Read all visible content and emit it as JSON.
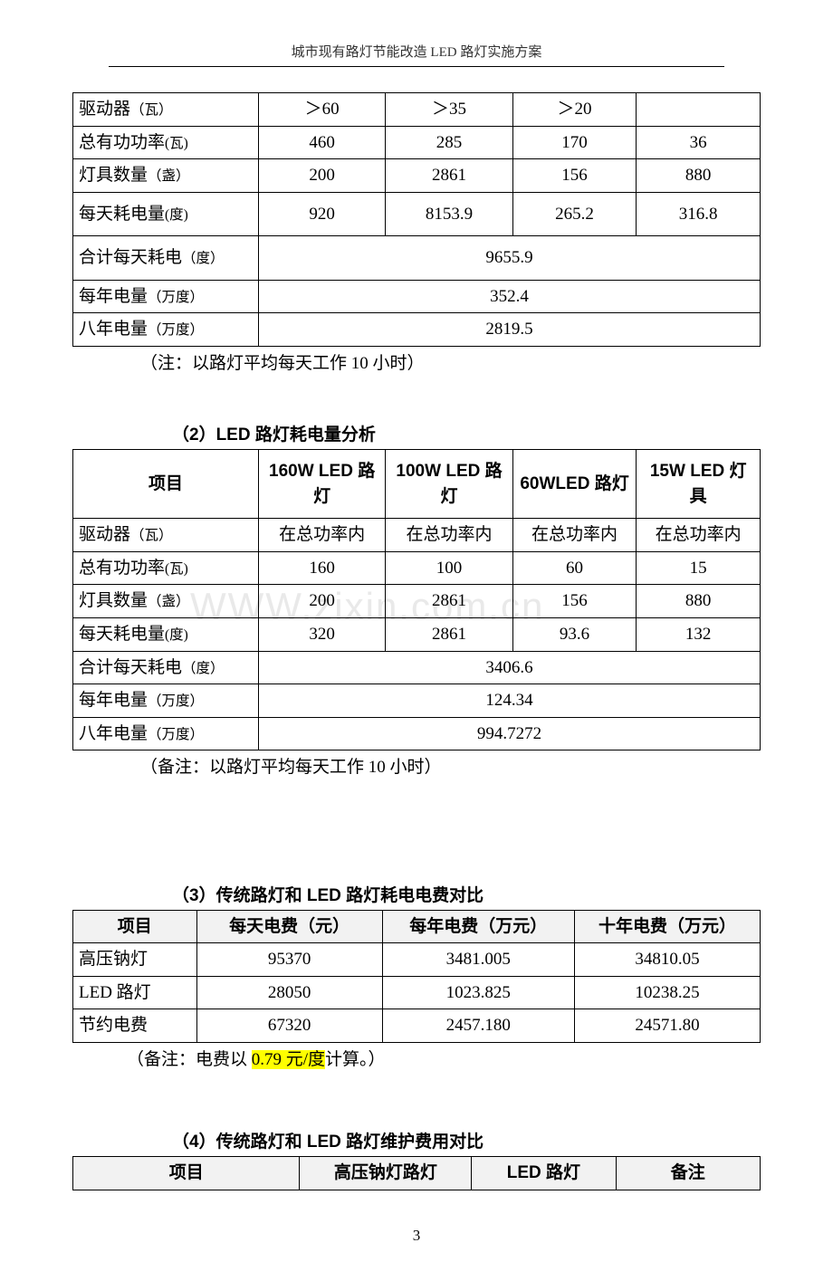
{
  "header": {
    "title": "城市现有路灯节能改造 LED 路灯实施方案"
  },
  "table1": {
    "rows": [
      {
        "label": "驱动器",
        "unit": "（瓦）",
        "v1": "＞60",
        "v2": "＞35",
        "v3": "＞20",
        "v4": ""
      },
      {
        "label": "总有功功率",
        "unit": "(瓦)",
        "v1": "460",
        "v2": "285",
        "v3": "170",
        "v4": "36"
      },
      {
        "label": "灯具数量",
        "unit": "（盏）",
        "v1": "200",
        "v2": "2861",
        "v3": "156",
        "v4": "880"
      },
      {
        "label": "每天耗电量",
        "unit": "(度)",
        "v1": "920",
        "v2": "8153.9",
        "v3": "265.2",
        "v4": "316.8",
        "tall": true
      },
      {
        "label": "合计每天耗电",
        "unit": "（度）",
        "merged": "9655.9",
        "tall": true
      },
      {
        "label": "每年电量",
        "unit": "（万度）",
        "merged": "352.4"
      },
      {
        "label": "八年电量",
        "unit": "（万度）",
        "merged": "2819.5"
      }
    ],
    "note": "（注：以路灯平均每天工作 10 小时）"
  },
  "section2": {
    "title": "（2）LED 路灯耗电量分析",
    "headers": [
      "项目",
      "160W LED 路灯",
      "100W LED 路灯",
      "60WLED 路灯",
      "15W LED 灯具"
    ],
    "rows": [
      {
        "label": "驱动器",
        "unit": "（瓦）",
        "v1": "在总功率内",
        "v2": "在总功率内",
        "v3": "在总功率内",
        "v4": "在总功率内"
      },
      {
        "label": "总有功功率",
        "unit": "(瓦)",
        "v1": "160",
        "v2": "100",
        "v3": "60",
        "v4": "15"
      },
      {
        "label": "灯具数量",
        "unit": "（盏）",
        "v1": "200",
        "v2": "2861",
        "v3": "156",
        "v4": "880"
      },
      {
        "label": "每天耗电量",
        "unit": "(度)",
        "v1": "320",
        "v2": "2861",
        "v3": "93.6",
        "v4": "132"
      },
      {
        "label": "合计每天耗电",
        "unit": "（度）",
        "merged": "3406.6"
      },
      {
        "label": "每年电量",
        "unit": "（万度）",
        "merged": "124.34"
      },
      {
        "label": "八年电量",
        "unit": "（万度）",
        "merged": "994.7272"
      }
    ],
    "note": "（备注：以路灯平均每天工作 10 小时）",
    "watermark": "WWW.zixin.com.cn"
  },
  "section3": {
    "title": "（3）传统路灯和 LED 路灯耗电电费对比",
    "headers": [
      "项目",
      "每天电费（元）",
      "每年电费（万元）",
      "十年电费（万元）"
    ],
    "rows": [
      [
        "高压钠灯",
        "95370",
        "3481.005",
        "34810.05"
      ],
      [
        "LED 路灯",
        "28050",
        "1023.825",
        "10238.25"
      ],
      [
        "节约电费",
        "67320",
        "2457.180",
        "24571.80"
      ]
    ],
    "note_pre": "（备注：电费以 ",
    "note_hl": "0.79 元/度",
    "note_post": "计算。）"
  },
  "section4": {
    "title": "（4）传统路灯和 LED 路灯维护费用对比",
    "headers": [
      "项目",
      "高压钠灯路灯",
      "LED 路灯",
      "备注"
    ]
  },
  "pageNumber": "3"
}
